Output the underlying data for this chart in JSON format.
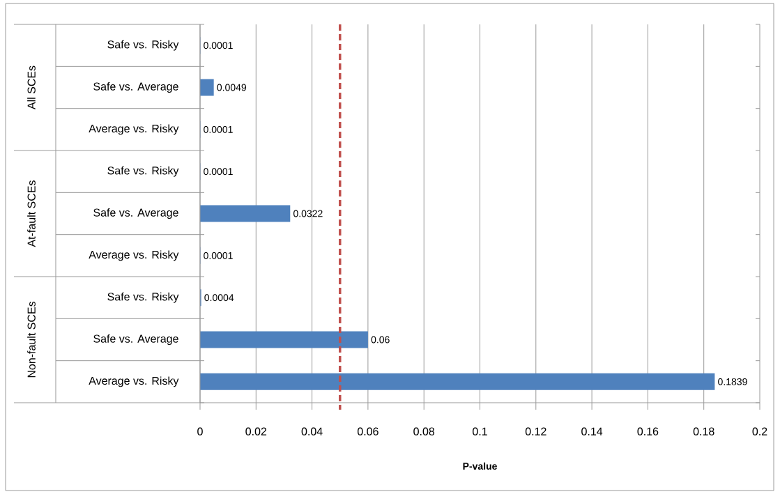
{
  "chart_data": {
    "type": "bar",
    "orientation": "horizontal",
    "xlabel": "P-value",
    "categories": [
      "Safe vs. Risky",
      "Safe vs. Average",
      "Average vs. Risky",
      "Safe vs. Risky",
      "Safe vs. Average",
      "Average vs. Risky",
      "Safe vs. Risky",
      "Safe vs. Average",
      "Average vs. Risky"
    ],
    "values": [
      0.0001,
      0.0049,
      0.0001,
      0.0001,
      0.0322,
      0.0001,
      0.0004,
      0.06,
      0.1839
    ],
    "color": "#4f81bd",
    "xlim": [
      0,
      0.2
    ],
    "xticks": [
      0,
      0.02,
      0.04,
      0.06,
      0.08,
      0.1,
      0.12,
      0.14,
      0.16,
      0.18,
      0.2
    ],
    "grid": "x",
    "data_labels": true,
    "ref_lines": [
      {
        "axis": "x",
        "value": 0.05,
        "color": "#c0504d",
        "line_style": "dashed"
      }
    ],
    "annotations": [
      "All SCEs",
      "At-fault SCEs",
      "Non-fault SCEs"
    ]
  }
}
